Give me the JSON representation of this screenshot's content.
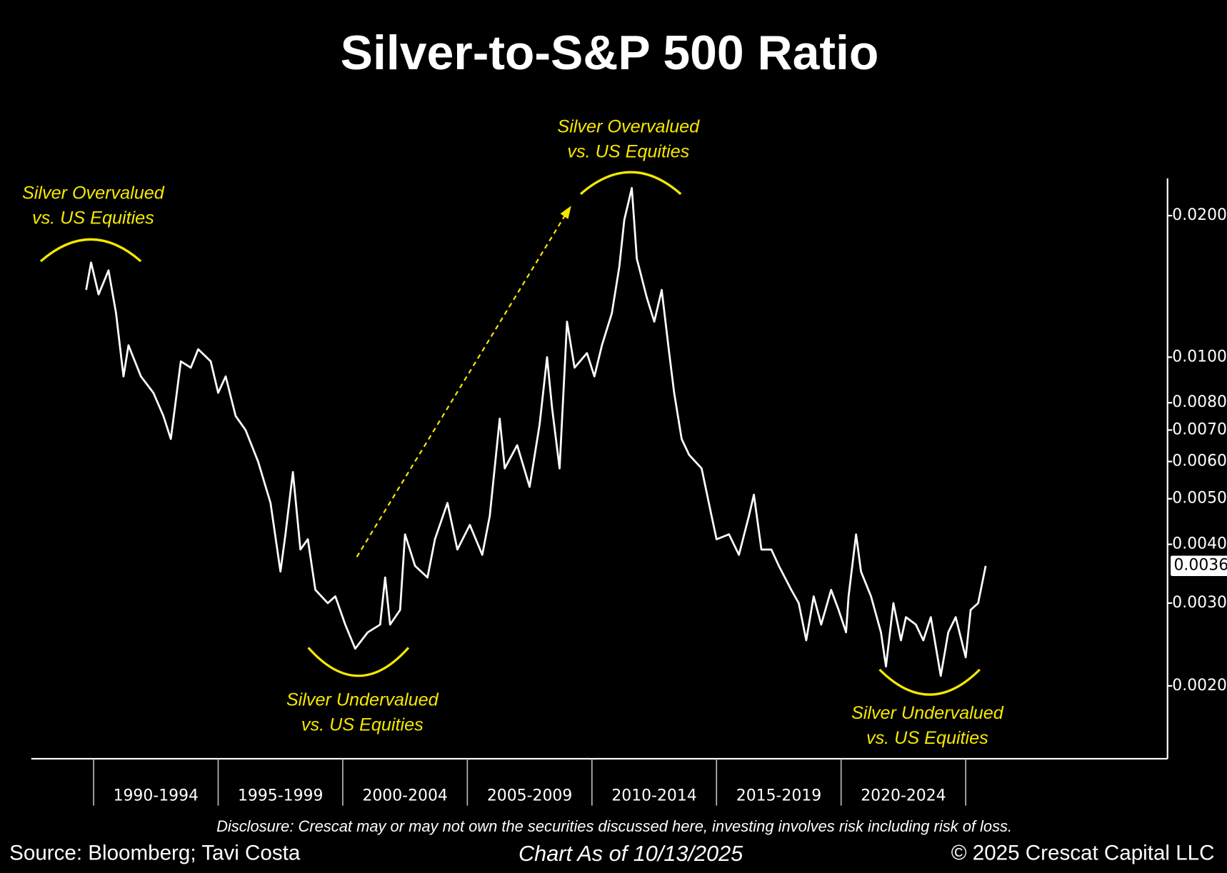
{
  "chart_data": {
    "type": "line",
    "title": "Silver-to-S&P 500 Ratio",
    "x": [
      1989.7,
      1989.9,
      1990.2,
      1990.6,
      1990.9,
      1991.2,
      1991.4,
      1991.9,
      1992.4,
      1992.8,
      1993.1,
      1993.5,
      1993.9,
      1994.2,
      1994.7,
      1995.0,
      1995.3,
      1995.7,
      1996.1,
      1996.6,
      1997.1,
      1997.5,
      1997.7,
      1998.0,
      1998.3,
      1998.6,
      1998.9,
      1999.4,
      1999.7,
      2000.1,
      2000.5,
      2001.0,
      2001.5,
      2001.7,
      2001.9,
      2002.3,
      2002.5,
      2002.9,
      2003.4,
      2003.7,
      2004.2,
      2004.6,
      2005.1,
      2005.6,
      2005.9,
      2006.3,
      2006.5,
      2007.0,
      2007.5,
      2007.9,
      2008.2,
      2008.4,
      2008.7,
      2009.0,
      2009.3,
      2009.8,
      2010.1,
      2010.4,
      2010.8,
      2011.1,
      2011.3,
      2011.6,
      2011.8,
      2012.2,
      2012.5,
      2012.8,
      2013.1,
      2013.3,
      2013.6,
      2013.9,
      2014.4,
      2014.8,
      2015.0,
      2015.5,
      2015.9,
      2016.3,
      2016.5,
      2016.8,
      2017.2,
      2017.5,
      2018.0,
      2018.3,
      2018.6,
      2018.9,
      2019.2,
      2019.6,
      2019.9,
      2020.2,
      2020.3,
      2020.6,
      2020.8,
      2021.2,
      2021.6,
      2021.8,
      2022.1,
      2022.4,
      2022.6,
      2023.0,
      2023.3,
      2023.6,
      2024.0,
      2024.3,
      2024.6,
      2025.0,
      2025.2,
      2025.5,
      2025.8
    ],
    "values": [
      0.0139,
      0.0159,
      0.0136,
      0.0153,
      0.0124,
      0.0091,
      0.0106,
      0.0091,
      0.0084,
      0.0075,
      0.0067,
      0.0098,
      0.0095,
      0.0104,
      0.0098,
      0.0084,
      0.0091,
      0.0075,
      0.007,
      0.006,
      0.0049,
      0.0035,
      0.0042,
      0.0057,
      0.0039,
      0.0041,
      0.0032,
      0.003,
      0.0031,
      0.0027,
      0.0024,
      0.0026,
      0.0027,
      0.0034,
      0.0027,
      0.0029,
      0.0042,
      0.0036,
      0.0034,
      0.0041,
      0.0049,
      0.0039,
      0.0044,
      0.0038,
      0.0046,
      0.0074,
      0.0058,
      0.0065,
      0.0053,
      0.0072,
      0.01,
      0.0078,
      0.0058,
      0.0119,
      0.0095,
      0.0102,
      0.0091,
      0.0106,
      0.0124,
      0.0156,
      0.0196,
      0.0229,
      0.0162,
      0.0134,
      0.0119,
      0.0139,
      0.0102,
      0.0084,
      0.0067,
      0.0062,
      0.0058,
      0.0046,
      0.0041,
      0.0042,
      0.0038,
      0.0046,
      0.0051,
      0.0039,
      0.0039,
      0.0036,
      0.0032,
      0.003,
      0.0025,
      0.0031,
      0.0027,
      0.0032,
      0.0029,
      0.0026,
      0.0031,
      0.0042,
      0.0035,
      0.0031,
      0.0026,
      0.0022,
      0.003,
      0.0025,
      0.0028,
      0.0027,
      0.0025,
      0.0028,
      0.0021,
      0.0026,
      0.0028,
      0.0023,
      0.0029,
      0.003,
      0.0036
    ],
    "color": "#ffffff",
    "log_scale": true,
    "xlim": [
      1987.5,
      2033.1
    ],
    "xticks": [
      {
        "value": 1990,
        "label": "1990-1994"
      },
      {
        "value": 1995,
        "label": "1995-1999"
      },
      {
        "value": 2000,
        "label": "2000-2004"
      },
      {
        "value": 2005,
        "label": "2005-2009"
      },
      {
        "value": 2010,
        "label": "2010-2014"
      },
      {
        "value": 2015,
        "label": "2015-2019"
      },
      {
        "value": 2020,
        "label": "2020-2024"
      },
      {
        "value": 2025,
        "label": ""
      }
    ],
    "ylim": [
      0.0014,
      0.024
    ],
    "yticks": [
      {
        "value": 0.02,
        "label": "0.0200"
      },
      {
        "value": 0.01,
        "label": "0.0100"
      },
      {
        "value": 0.008,
        "label": "0.0080"
      },
      {
        "value": 0.007,
        "label": "0.0070"
      },
      {
        "value": 0.006,
        "label": "0.0060"
      },
      {
        "value": 0.005,
        "label": "0.0050"
      },
      {
        "value": 0.004,
        "label": "0.0040"
      },
      {
        "value": 0.003,
        "label": "0.0030"
      },
      {
        "value": 0.002,
        "label": "0.0020"
      }
    ],
    "annotations": [
      {
        "lines": [
          "Silver Overvalued",
          "vs. US Equities"
        ]
      },
      {
        "lines": [
          "Silver Undervalued",
          "vs. US Equities"
        ]
      },
      {
        "lines": [
          "Silver Overvalued",
          "vs. US Equities"
        ]
      },
      {
        "lines": [
          "Silver Undervalued",
          "vs. US Equities"
        ]
      }
    ],
    "disclosure": "Disclosure: Crescat may or may not own the securities discussed here, investing involves risk including risk of loss.",
    "source": "Source: Bloomberg; Tavi Costa",
    "as_of": "Chart As of 10/13/2025",
    "copyright": "© 2025 Crescat Capital LLC"
  }
}
